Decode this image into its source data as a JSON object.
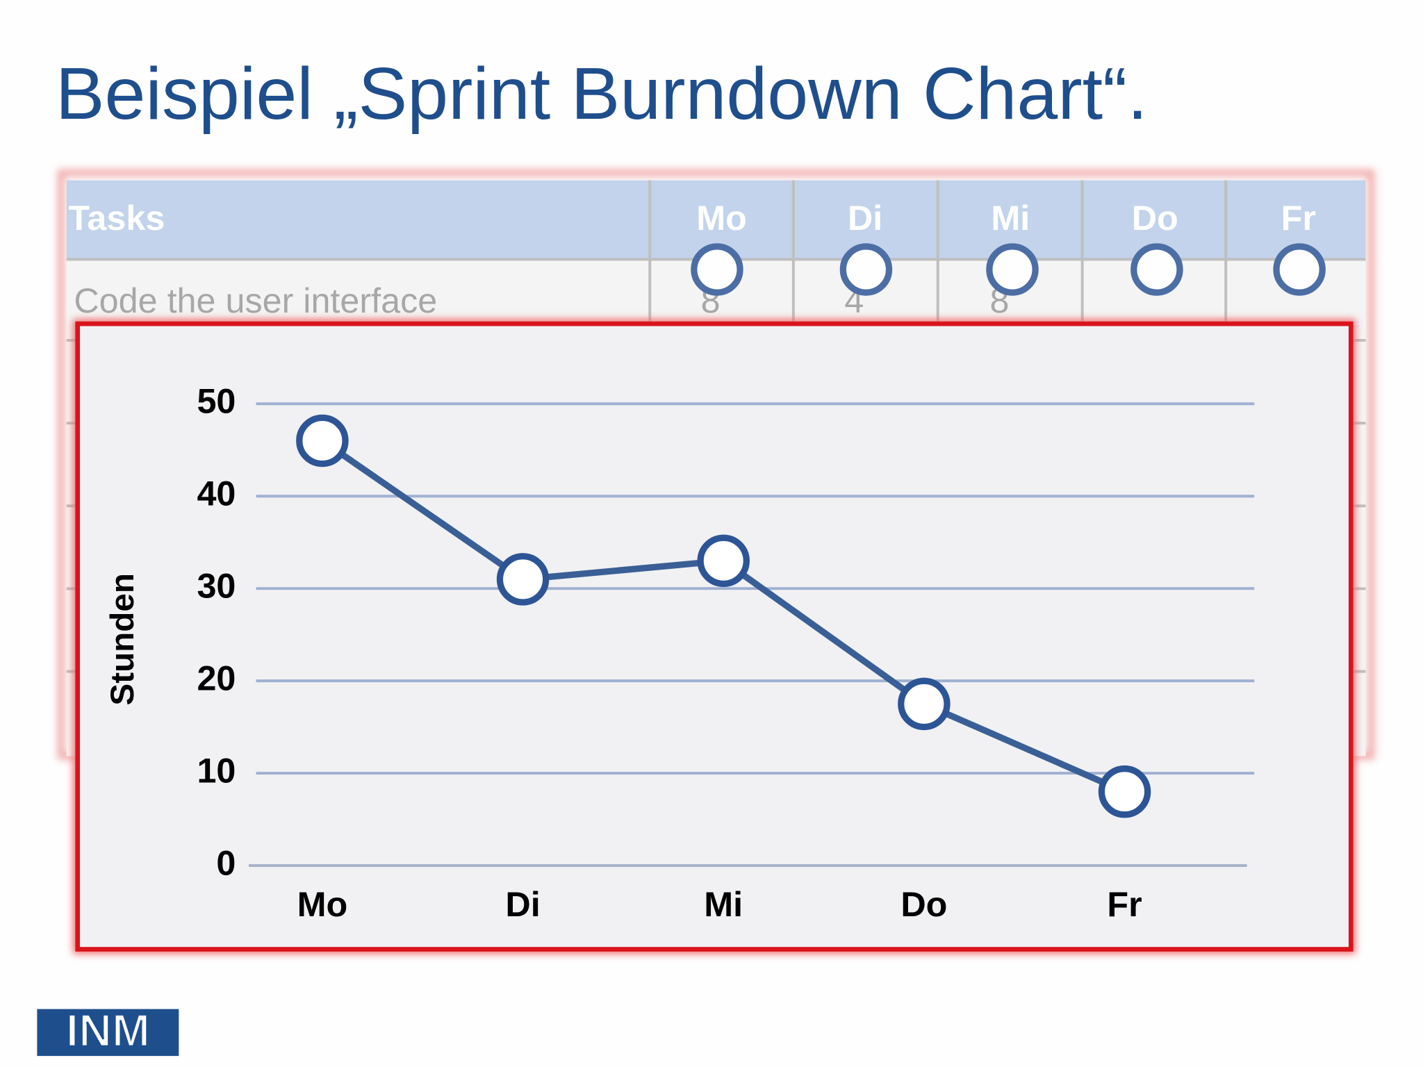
{
  "header": {
    "title": "Beispiel „Sprint Burndown Chart“."
  },
  "table": {
    "header": [
      "Tasks",
      "Mo",
      "Di",
      "Mi",
      "Do",
      "Fr"
    ],
    "rows": [
      [
        "Code the user interface",
        "8",
        "4",
        "8"
      ]
    ]
  },
  "logo": {
    "text": "INM"
  },
  "chart_data": {
    "type": "line",
    "y_label": "Stunden",
    "categories": [
      "Mo",
      "Di",
      "Mi",
      "Do",
      "Fr"
    ],
    "values": [
      46,
      31,
      33,
      17.5,
      8
    ],
    "color": "#3a5f96",
    "ylim": [
      0,
      50
    ],
    "yticks": [
      0,
      10,
      20,
      30,
      40,
      50
    ],
    "grid": true
  }
}
